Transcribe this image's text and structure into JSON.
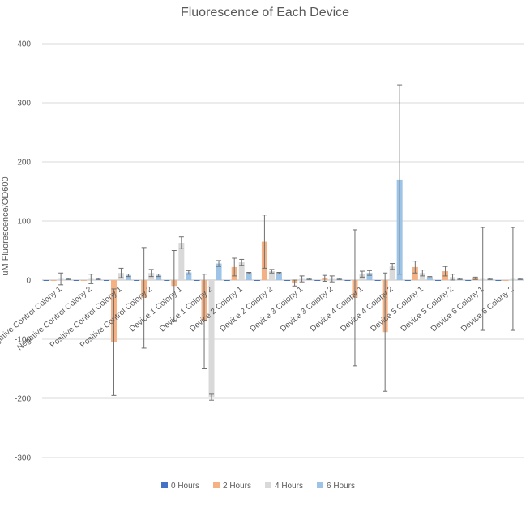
{
  "chart_data": {
    "type": "bar",
    "title": "Fluorescence of Each Device",
    "xlabel": "",
    "ylabel": "uM Fluorescence/OD600",
    "ylim": [
      -300,
      400
    ],
    "yticks": [
      -300,
      -200,
      -100,
      0,
      100,
      200,
      300,
      400
    ],
    "grid": true,
    "legend_position": "bottom",
    "categories": [
      "Negative Control Colony 1",
      "Negative Control Colony 2",
      "Positive Control Colony 1",
      "Positive Control Colony 2",
      "Device 1 Colony 1",
      "Device 1 Colony 2",
      "Device 2 Colony 1",
      "Device 2 Colony 2",
      "Device 3 Colony 1",
      "Device 3 Colony 2",
      "Device 4 Colony 1",
      "Device 4 Colony 2",
      "Device 5 Colony 1",
      "Device 5 Colony 2",
      "Device 6 Colony 1",
      "Device 6 Colony 2"
    ],
    "series": [
      {
        "name": "0 Hours",
        "color": "#4472c4",
        "values": [
          0,
          0,
          0,
          0,
          0,
          0,
          0,
          0,
          0,
          0,
          0,
          0,
          0,
          0,
          0,
          0
        ],
        "errors": [
          0,
          0,
          0,
          0,
          0,
          0,
          0,
          0,
          0,
          0,
          0,
          0,
          0,
          0,
          0,
          0
        ]
      },
      {
        "name": "2 Hours",
        "color": "#f4b183",
        "values": [
          0,
          0,
          -105,
          -30,
          -10,
          -70,
          22,
          65,
          -5,
          3,
          -30,
          -88,
          22,
          15,
          3,
          0
        ],
        "errors": [
          0,
          0,
          90,
          85,
          60,
          80,
          15,
          45,
          5,
          5,
          115,
          100,
          10,
          8,
          2,
          0
        ]
      },
      {
        "name": "4 Hours",
        "color": "#d9d9d9",
        "values": [
          2,
          2,
          12,
          12,
          63,
          -198,
          30,
          15,
          2,
          2,
          10,
          23,
          12,
          5,
          2,
          2
        ],
        "errors": [
          10,
          8,
          8,
          6,
          10,
          5,
          5,
          3,
          5,
          5,
          5,
          5,
          5,
          5,
          87,
          87
        ]
      },
      {
        "name": "6 Hours",
        "color": "#9dc3e6",
        "values": [
          2,
          2,
          8,
          8,
          13,
          28,
          12,
          12,
          2,
          2,
          12,
          170,
          5,
          2,
          2,
          2
        ],
        "errors": [
          1,
          1,
          2,
          2,
          3,
          5,
          1,
          1,
          1,
          1,
          4,
          160,
          1,
          1,
          1,
          1
        ]
      }
    ]
  }
}
